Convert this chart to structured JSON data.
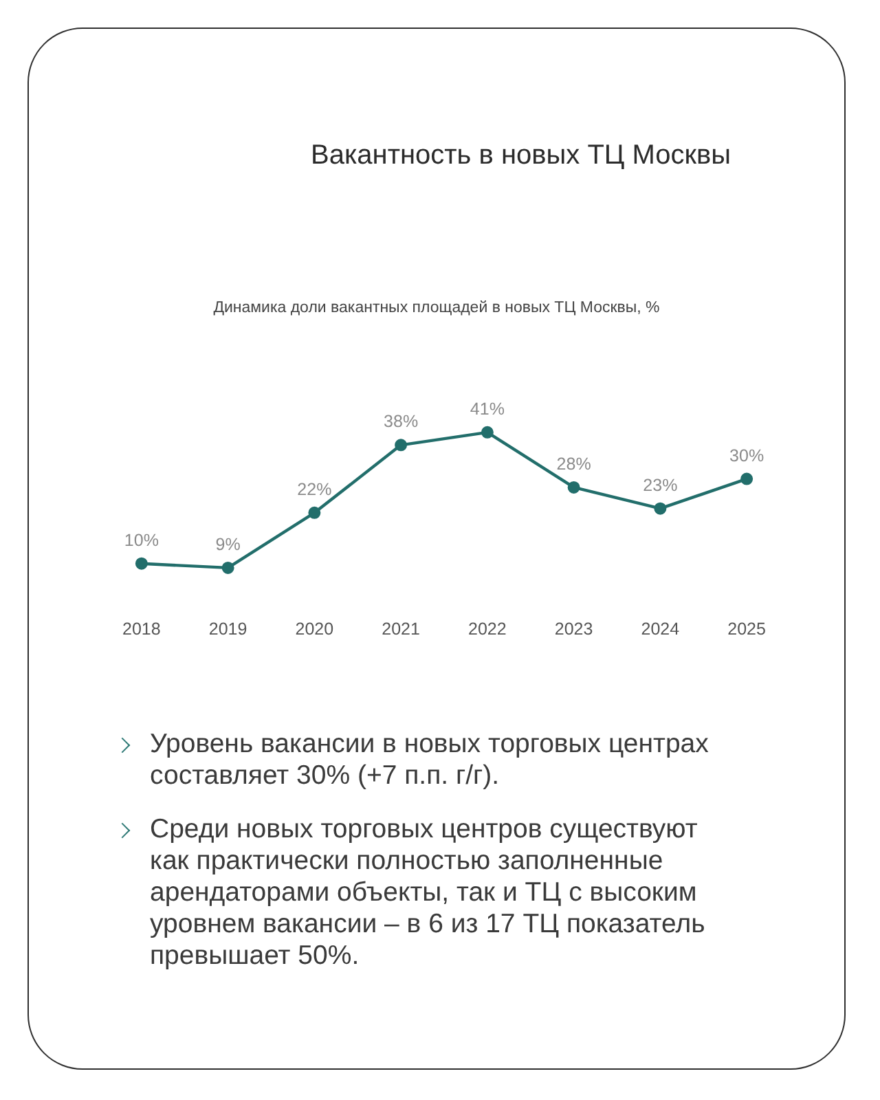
{
  "chart_data": {
    "type": "line",
    "title": "Вакантность в новых ТЦ Москвы",
    "subtitle": "Динамика доли вакантных площадей в новых ТЦ Москвы, %",
    "categories": [
      "2018",
      "2019",
      "2020",
      "2021",
      "2022",
      "2023",
      "2024",
      "2025"
    ],
    "series": [
      {
        "color": "#226e6b",
        "values": [
          10,
          9,
          22,
          38,
          41,
          28,
          23,
          30
        ],
        "value_labels": [
          "10%",
          "9%",
          "22%",
          "38%",
          "41%",
          "28%",
          "23%",
          "30%"
        ]
      }
    ],
    "marker": "circle",
    "tick_labels": "x",
    "annotations": [
      "Уровень вакансии в новых торговых центрах составляет 30% (+7 п.п. г/г).",
      "Среди новых торговых центров существуют как практически полностью заполненные арендаторами объекты, так и ТЦ с высоким уровнем вакансии – в 6 из 17 ТЦ показатель превышает 50%."
    ]
  }
}
